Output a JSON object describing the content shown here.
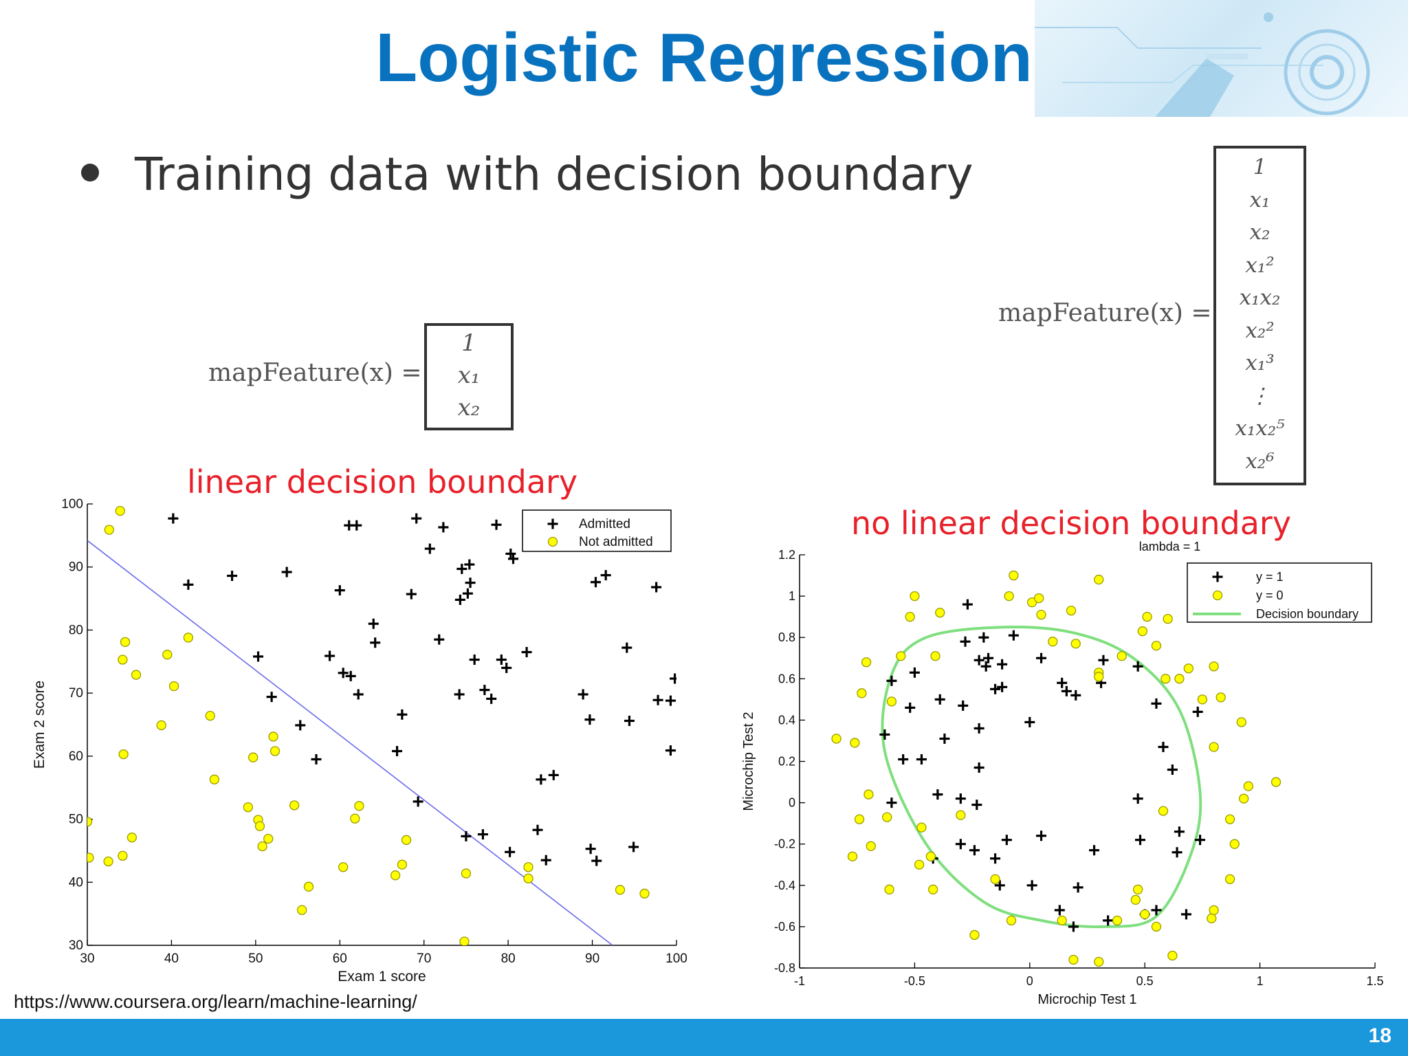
{
  "slide": {
    "title": "Logistic Regression",
    "bullet": "Training data with decision boundary",
    "url": "https://www.coursera.org/learn/machine-learning/",
    "page_number": "18",
    "accent_color": "#0872bf",
    "footer_color": "#1b97db"
  },
  "equations": {
    "small": {
      "label": "mapFeature(x) =",
      "entries": [
        "1",
        "x₁",
        "x₂"
      ]
    },
    "large": {
      "label": "mapFeature(x) =",
      "entries": [
        "1",
        "x₁",
        "x₂",
        "x₁²",
        "x₁x₂",
        "x₂²",
        "x₁³",
        "⋮",
        "x₁x₂⁵",
        "x₂⁶"
      ]
    }
  },
  "annotations": {
    "left": "linear decision boundary",
    "right": "no linear decision boundary",
    "color": "#e8202a"
  },
  "chart_data": [
    {
      "type": "scatter",
      "title": "",
      "xlabel": "Exam 1 score",
      "ylabel": "Exam 2 score",
      "xlim": [
        30,
        100
      ],
      "ylim": [
        30,
        100
      ],
      "xticks": [
        30,
        40,
        50,
        60,
        70,
        80,
        90,
        100
      ],
      "yticks": [
        30,
        40,
        50,
        60,
        70,
        80,
        90,
        100
      ],
      "legend_position": "top-right",
      "series": [
        {
          "name": "Admitted",
          "marker": "plus",
          "color": "#000000",
          "points": [
            [
              40.2,
              97.7
            ],
            [
              42,
              87.2
            ],
            [
              47.2,
              88.6
            ],
            [
              50.3,
              75.8
            ],
            [
              51.9,
              69.4
            ],
            [
              53.7,
              89.2
            ],
            [
              55.3,
              64.9
            ],
            [
              57.2,
              59.5
            ],
            [
              58.8,
              75.9
            ],
            [
              60,
              86.3
            ],
            [
              60.4,
              73.2
            ],
            [
              61.1,
              96.6
            ],
            [
              61.3,
              72.7
            ],
            [
              62,
              96.6
            ],
            [
              62.2,
              69.8
            ],
            [
              64,
              81
            ],
            [
              64.2,
              78
            ],
            [
              66.8,
              60.8
            ],
            [
              67.4,
              66.6
            ],
            [
              68.5,
              85.7
            ],
            [
              69.1,
              97.7
            ],
            [
              69.3,
              52.8
            ],
            [
              70.7,
              92.9
            ],
            [
              71.8,
              78.5
            ],
            [
              72.3,
              96.3
            ],
            [
              74.2,
              69.8
            ],
            [
              74.3,
              84.8
            ],
            [
              74.5,
              89.7
            ],
            [
              75,
              47.3
            ],
            [
              75.2,
              85.8
            ],
            [
              75.4,
              90.4
            ],
            [
              75.5,
              87.5
            ],
            [
              76,
              75.3
            ],
            [
              77,
              47.6
            ],
            [
              77.2,
              70.5
            ],
            [
              78,
              69.1
            ],
            [
              78.6,
              96.7
            ],
            [
              79.2,
              75.3
            ],
            [
              79.8,
              74
            ],
            [
              80.2,
              44.8
            ],
            [
              80.3,
              92.1
            ],
            [
              80.6,
              91.3
            ],
            [
              82.2,
              76.5
            ],
            [
              83.5,
              48.3
            ],
            [
              83.9,
              56.3
            ],
            [
              84.5,
              43.5
            ],
            [
              85.4,
              57
            ],
            [
              88.9,
              69.8
            ],
            [
              89.7,
              65.8
            ],
            [
              89.8,
              45.3
            ],
            [
              90.4,
              87.6
            ],
            [
              90.5,
              43.4
            ],
            [
              91.6,
              88.7
            ],
            [
              94.1,
              77.2
            ],
            [
              94.4,
              65.6
            ],
            [
              94.9,
              45.6
            ],
            [
              97.6,
              86.8
            ],
            [
              97.8,
              68.9
            ],
            [
              99.3,
              68.8
            ],
            [
              99.3,
              60.9
            ],
            [
              99.8,
              72.3
            ]
          ]
        },
        {
          "name": "Not admitted",
          "marker": "circle",
          "color": "#ffff00",
          "points": [
            [
              30,
              49.6
            ],
            [
              30.2,
              43.9
            ],
            [
              32.5,
              43.3
            ],
            [
              32.6,
              95.9
            ],
            [
              33.9,
              98.9
            ],
            [
              34.2,
              75.3
            ],
            [
              34.2,
              44.2
            ],
            [
              34.3,
              60.3
            ],
            [
              34.5,
              78.1
            ],
            [
              35.3,
              47.1
            ],
            [
              35.8,
              72.9
            ],
            [
              38.8,
              64.9
            ],
            [
              39.5,
              76.1
            ],
            [
              40.3,
              71.1
            ],
            [
              42,
              78.8
            ],
            [
              44.6,
              66.4
            ],
            [
              45.1,
              56.3
            ],
            [
              49.1,
              51.9
            ],
            [
              49.7,
              59.8
            ],
            [
              50.3,
              49.9
            ],
            [
              50.5,
              48.9
            ],
            [
              50.8,
              45.7
            ],
            [
              51.5,
              46.9
            ],
            [
              52.1,
              63.1
            ],
            [
              52.3,
              60.8
            ],
            [
              54.6,
              52.2
            ],
            [
              55.5,
              35.6
            ],
            [
              56.3,
              39.3
            ],
            [
              60.4,
              42.4
            ],
            [
              61.8,
              50.1
            ],
            [
              62.3,
              52.1
            ],
            [
              66.6,
              41.1
            ],
            [
              67.4,
              42.8
            ],
            [
              67.9,
              46.7
            ],
            [
              74.8,
              30.6
            ],
            [
              75,
              41.4
            ],
            [
              82.4,
              42.4
            ],
            [
              82.4,
              40.6
            ],
            [
              93.3,
              38.8
            ],
            [
              96.2,
              38.2
            ]
          ]
        }
      ],
      "decision_boundary": {
        "type": "line",
        "points": [
          [
            30,
            94.2
          ],
          [
            92.4,
            30
          ]
        ],
        "color": "#6a6af0"
      }
    },
    {
      "type": "scatter",
      "title": "lambda = 1",
      "xlabel": "Microchip Test 1",
      "ylabel": "Microchip Test 2",
      "xlim": [
        -1,
        1.5
      ],
      "ylim": [
        -0.8,
        1.2
      ],
      "xticks": [
        -1,
        -0.5,
        0,
        0.5,
        1,
        1.5
      ],
      "xtick_labels": [
        "-1",
        "-0.5",
        "0",
        "0.5",
        "1",
        "1.5"
      ],
      "yticks": [
        -0.8,
        -0.6,
        -0.4,
        -0.2,
        0,
        0.2,
        0.4,
        0.6,
        0.8,
        1,
        1.2
      ],
      "ytick_labels": [
        "-0.8",
        "-0.6",
        "-0.4",
        "-0.2",
        "0",
        "0.2",
        "0.4",
        "0.6",
        "0.8",
        "1",
        "1.2"
      ],
      "legend_position": "top-right",
      "series": [
        {
          "name": "y = 1",
          "marker": "plus",
          "color": "#000000",
          "points": [
            [
              -0.63,
              0.33
            ],
            [
              -0.6,
              0.59
            ],
            [
              -0.6,
              0
            ],
            [
              -0.55,
              0.21
            ],
            [
              -0.52,
              0.46
            ],
            [
              -0.5,
              0.63
            ],
            [
              -0.47,
              0.21
            ],
            [
              -0.42,
              -0.27
            ],
            [
              -0.4,
              0.04
            ],
            [
              -0.39,
              0.5
            ],
            [
              -0.37,
              0.31
            ],
            [
              -0.3,
              0.02
            ],
            [
              -0.3,
              -0.2
            ],
            [
              -0.29,
              0.47
            ],
            [
              -0.28,
              0.78
            ],
            [
              -0.27,
              0.96
            ],
            [
              -0.24,
              -0.23
            ],
            [
              -0.23,
              -0.01
            ],
            [
              -0.22,
              0.69
            ],
            [
              -0.22,
              0.36
            ],
            [
              -0.22,
              0.17
            ],
            [
              -0.2,
              0.8
            ],
            [
              -0.19,
              0.66
            ],
            [
              -0.18,
              0.7
            ],
            [
              -0.15,
              -0.27
            ],
            [
              -0.15,
              0.55
            ],
            [
              -0.13,
              -0.4
            ],
            [
              -0.12,
              0.56
            ],
            [
              -0.12,
              0.67
            ],
            [
              -0.1,
              -0.18
            ],
            [
              -0.07,
              0.81
            ],
            [
              0,
              0.39
            ],
            [
              0.01,
              -0.4
            ],
            [
              0.05,
              -0.16
            ],
            [
              0.05,
              0.7
            ],
            [
              0.13,
              -0.52
            ],
            [
              0.14,
              0.58
            ],
            [
              0.16,
              0.54
            ],
            [
              0.19,
              -0.6
            ],
            [
              0.2,
              0.52
            ],
            [
              0.21,
              -0.41
            ],
            [
              0.28,
              -0.23
            ],
            [
              0.31,
              0.58
            ],
            [
              0.32,
              0.69
            ],
            [
              0.34,
              -0.57
            ],
            [
              0.47,
              0.66
            ],
            [
              0.47,
              0.02
            ],
            [
              0.48,
              -0.18
            ],
            [
              0.5,
              -0.54
            ],
            [
              0.55,
              -0.52
            ],
            [
              0.55,
              0.48
            ],
            [
              0.58,
              0.27
            ],
            [
              0.62,
              0.16
            ],
            [
              0.64,
              -0.24
            ],
            [
              0.65,
              -0.14
            ],
            [
              0.68,
              -0.54
            ],
            [
              0.73,
              0.44
            ],
            [
              0.74,
              -0.18
            ]
          ]
        },
        {
          "name": "y = 0",
          "marker": "circle",
          "color": "#ffff00",
          "points": [
            [
              -0.84,
              0.31
            ],
            [
              -0.77,
              -0.26
            ],
            [
              -0.76,
              0.29
            ],
            [
              -0.74,
              -0.08
            ],
            [
              -0.73,
              0.53
            ],
            [
              -0.71,
              0.68
            ],
            [
              -0.7,
              0.04
            ],
            [
              -0.69,
              -0.21
            ],
            [
              -0.62,
              -0.07
            ],
            [
              -0.61,
              -0.42
            ],
            [
              -0.6,
              0.49
            ],
            [
              -0.56,
              0.71
            ],
            [
              -0.52,
              0.9
            ],
            [
              -0.5,
              1
            ],
            [
              -0.48,
              -0.3
            ],
            [
              -0.47,
              -0.12
            ],
            [
              -0.43,
              -0.26
            ],
            [
              -0.42,
              -0.42
            ],
            [
              -0.41,
              0.71
            ],
            [
              -0.39,
              0.92
            ],
            [
              -0.3,
              -0.06
            ],
            [
              -0.24,
              -0.64
            ],
            [
              -0.15,
              -0.37
            ],
            [
              -0.09,
              1
            ],
            [
              -0.08,
              -0.57
            ],
            [
              -0.07,
              1.1
            ],
            [
              0.01,
              0.97
            ],
            [
              0.04,
              0.99
            ],
            [
              0.05,
              0.91
            ],
            [
              0.1,
              0.78
            ],
            [
              0.14,
              -0.57
            ],
            [
              0.18,
              0.93
            ],
            [
              0.19,
              -0.76
            ],
            [
              0.2,
              0.77
            ],
            [
              0.3,
              1.08
            ],
            [
              0.3,
              0.63
            ],
            [
              0.3,
              0.61
            ],
            [
              0.3,
              -0.77
            ],
            [
              0.38,
              -0.57
            ],
            [
              0.4,
              0.71
            ],
            [
              0.46,
              -0.47
            ],
            [
              0.47,
              -0.42
            ],
            [
              0.49,
              0.83
            ],
            [
              0.5,
              -0.54
            ],
            [
              0.51,
              0.9
            ],
            [
              0.55,
              -0.6
            ],
            [
              0.55,
              0.76
            ],
            [
              0.58,
              -0.04
            ],
            [
              0.59,
              0.6
            ],
            [
              0.6,
              0.89
            ],
            [
              0.62,
              -0.74
            ],
            [
              0.65,
              0.6
            ],
            [
              0.69,
              0.65
            ],
            [
              0.75,
              0.5
            ],
            [
              0.79,
              -0.56
            ],
            [
              0.8,
              -0.52
            ],
            [
              0.8,
              0.66
            ],
            [
              0.8,
              0.27
            ],
            [
              0.83,
              0.51
            ],
            [
              0.87,
              -0.37
            ],
            [
              0.87,
              -0.08
            ],
            [
              0.89,
              -0.2
            ],
            [
              0.92,
              0.39
            ],
            [
              0.93,
              0.02
            ],
            [
              0.95,
              0.08
            ],
            [
              1.07,
              0.1
            ]
          ]
        }
      ],
      "decision_boundary": {
        "type": "curve",
        "name": "Decision boundary",
        "color": "#7fdf7f",
        "points": [
          [
            -0.1,
            0.85
          ],
          [
            0.2,
            0.82
          ],
          [
            0.45,
            0.7
          ],
          [
            0.65,
            0.45
          ],
          [
            0.74,
            0.05
          ],
          [
            0.7,
            -0.25
          ],
          [
            0.55,
            -0.55
          ],
          [
            0.32,
            -0.6
          ],
          [
            0.05,
            -0.57
          ],
          [
            -0.2,
            -0.48
          ],
          [
            -0.45,
            -0.2
          ],
          [
            -0.63,
            0.25
          ],
          [
            -0.6,
            0.62
          ],
          [
            -0.45,
            0.8
          ],
          [
            -0.1,
            0.85
          ]
        ]
      }
    }
  ]
}
